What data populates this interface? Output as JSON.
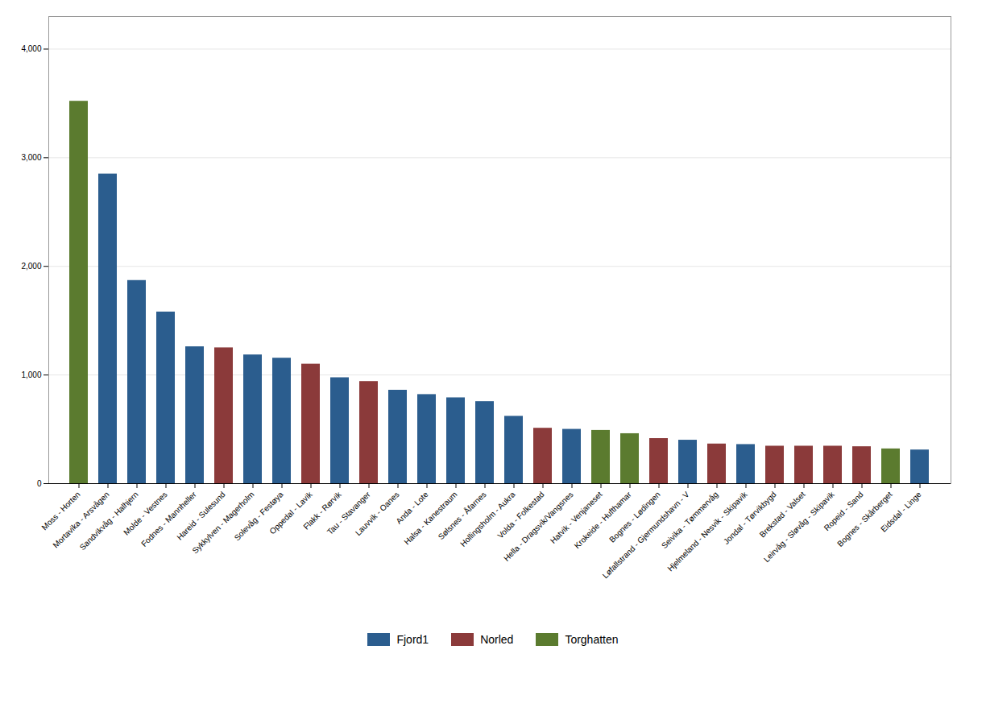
{
  "chart_data": {
    "type": "bar",
    "categories": [
      "Moss - Horten",
      "Mortavika - Arsvågen",
      "Sandvikvåg - Halhjern",
      "Molde - Vestnes",
      "Fodnes - Mannheller",
      "Hareid - Sulesund",
      "Sykkylven - Magerholm",
      "Solevåg - Festøya",
      "Oppedal - Lavik",
      "Flakk - Rørvik",
      "Tau - Stavanger",
      "Lauvvik - Oanes",
      "Anda - Lote",
      "Halsa - Kanestraum",
      "Sølsnes - Åfarnes",
      "Hollingsholm - Aukra",
      "Volda - Folkestad",
      "Hella - Dragsvik/Vangsnes",
      "Hatvik - Venjaneset",
      "Krokeide - Hufthamar",
      "Bognes - Lødingen",
      "Løfallstrand - Gjermundshavn - V",
      "Seivika - Tømmervåg",
      "Hjelmeland - Nesvik - Skipavik",
      "Jondal - Tørvikbygd",
      "Brekstad - Valset",
      "Leirvåg - Sløvåg - Skipavik",
      "Ropeid - Sand",
      "Bognes - Skårberget",
      "Eidsdal - Linge"
    ],
    "series": [
      {
        "name": "Fjord1",
        "color": "#2B5D8E",
        "values": [
          null,
          2850,
          1870,
          1580,
          1260,
          null,
          1185,
          1155,
          null,
          975,
          null,
          860,
          820,
          790,
          755,
          620,
          null,
          500,
          null,
          null,
          null,
          400,
          null,
          360,
          null,
          null,
          null,
          null,
          null,
          310
        ]
      },
      {
        "name": "Norled",
        "color": "#8B3A3A",
        "values": [
          null,
          null,
          null,
          null,
          null,
          1250,
          null,
          null,
          1100,
          null,
          940,
          null,
          null,
          null,
          null,
          null,
          510,
          null,
          null,
          null,
          415,
          null,
          365,
          null,
          345,
          345,
          345,
          340,
          null,
          null
        ]
      },
      {
        "name": "Torghatten",
        "color": "#5B7B2F",
        "values": [
          3520,
          null,
          null,
          null,
          null,
          null,
          null,
          null,
          null,
          null,
          null,
          null,
          null,
          null,
          null,
          null,
          null,
          null,
          490,
          460,
          null,
          null,
          null,
          null,
          null,
          null,
          null,
          null,
          320,
          null
        ]
      }
    ],
    "ylim": [
      0,
      4300
    ],
    "yticks": [
      0,
      1000,
      2000,
      3000,
      4000
    ],
    "grid": true,
    "legend": "bottom"
  }
}
